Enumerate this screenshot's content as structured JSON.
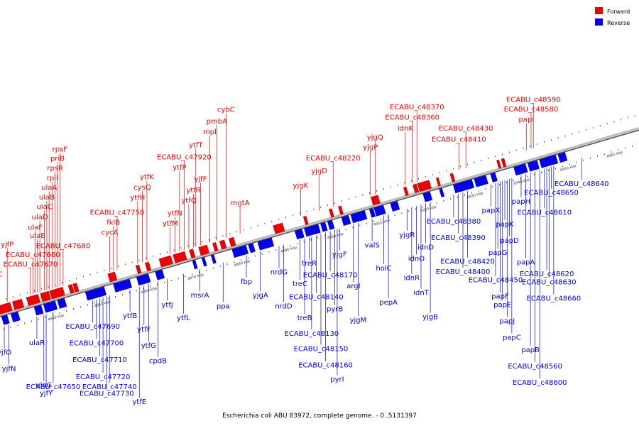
{
  "caption": "Escherichia coli ABU 83972, complete genome. - 0..5131397",
  "legend": [
    {
      "label": "Forward",
      "color": "#ee0000"
    },
    {
      "label": "Reverse",
      "color": "#0000ee"
    }
  ],
  "colors": {
    "forward": "#ee0000",
    "reverse": "#0000ee",
    "backbone": "#999999",
    "leader": "#000000"
  },
  "axis": {
    "start_kbp": 4830,
    "end_kbp": 4968,
    "unit": "kbp",
    "ticks": [
      4840,
      4850,
      4860,
      4870,
      4880,
      4890,
      4900,
      4910,
      4920,
      4930,
      4940,
      4950,
      4960
    ]
  },
  "forward_genes": [
    {
      "name": "ECABU_c47670",
      "pos": 4838.0
    },
    {
      "name": "ECABU_c47660",
      "pos": 4838.5
    },
    {
      "name": "yjfC",
      "pos": 4830.5
    },
    {
      "name": "yjfP",
      "pos": 4833.0
    },
    {
      "name": "ulaF",
      "pos": 4839.0
    },
    {
      "name": "ulaE",
      "pos": 4839.5
    },
    {
      "name": "ulaD",
      "pos": 4840.0
    },
    {
      "name": "ulaC",
      "pos": 4841.0
    },
    {
      "name": "ulaB",
      "pos": 4841.5
    },
    {
      "name": "ulaA",
      "pos": 4842.0
    },
    {
      "name": "rplI",
      "pos": 4842.7
    },
    {
      "name": "rpsR",
      "pos": 4843.3
    },
    {
      "name": "priB",
      "pos": 4843.8
    },
    {
      "name": "rpsF",
      "pos": 4844.3
    },
    {
      "name": "ECABU_c47680",
      "pos": 4845.0
    },
    {
      "name": "cycA",
      "pos": 4855.0
    },
    {
      "name": "fklB",
      "pos": 4855.8
    },
    {
      "name": "ECABU_c47750",
      "pos": 4856.6
    },
    {
      "name": "ytfH",
      "pos": 4861.0
    },
    {
      "name": "cysQ",
      "pos": 4862.0
    },
    {
      "name": "ytfK",
      "pos": 4863.0
    },
    {
      "name": "ytfM",
      "pos": 4868.0
    },
    {
      "name": "ytfN",
      "pos": 4869.0
    },
    {
      "name": "ytfP",
      "pos": 4870.0
    },
    {
      "name": "ECABU_c47920",
      "pos": 4871.0
    },
    {
      "name": "ytfQ",
      "pos": 4872.0
    },
    {
      "name": "ytfR",
      "pos": 4873.0
    },
    {
      "name": "ytfT",
      "pos": 4873.5
    },
    {
      "name": "yjfF",
      "pos": 4874.5
    },
    {
      "name": "mpl",
      "pos": 4876.5
    },
    {
      "name": "pmbA",
      "pos": 4878.0
    },
    {
      "name": "cybC",
      "pos": 4880.0
    },
    {
      "name": "mgtA",
      "pos": 4883.0
    },
    {
      "name": "yjgK",
      "pos": 4896.0
    },
    {
      "name": "yjgD",
      "pos": 4900.0
    },
    {
      "name": "ECABU_c48220",
      "pos": 4903.0
    },
    {
      "name": "yjgP",
      "pos": 4911.0
    },
    {
      "name": "yjgQ",
      "pos": 4912.0
    },
    {
      "name": "idnK",
      "pos": 4918.5
    },
    {
      "name": "ECABU_c48360",
      "pos": 4920.0
    },
    {
      "name": "ECABU_c48370",
      "pos": 4921.0
    },
    {
      "name": "ECABU_c48410",
      "pos": 4930.0
    },
    {
      "name": "ECABU_c48430",
      "pos": 4931.5
    },
    {
      "name": "papI",
      "pos": 4944.5
    },
    {
      "name": "ECABU_c48580",
      "pos": 4945.5
    },
    {
      "name": "ECABU_c48590",
      "pos": 4946.0
    }
  ],
  "reverse_genes": [
    {
      "name": "yjfO",
      "pos": 4831.0
    },
    {
      "name": "yjfN",
      "pos": 4832.0
    },
    {
      "name": "ulaR",
      "pos": 4838.0
    },
    {
      "name": "ulaG",
      "pos": 4839.5
    },
    {
      "name": "yjfY",
      "pos": 4840.0
    },
    {
      "name": "ECABU_c47650",
      "pos": 4841.5
    },
    {
      "name": "ECABU_c47690",
      "pos": 4850.0
    },
    {
      "name": "ECABU_c47700",
      "pos": 4850.8
    },
    {
      "name": "ECABU_c47710",
      "pos": 4851.5
    },
    {
      "name": "ECABU_c47720",
      "pos": 4852.2
    },
    {
      "name": "ECABU_c47730",
      "pos": 4853.0
    },
    {
      "name": "ECABU_c47740",
      "pos": 4853.6
    },
    {
      "name": "ytfB",
      "pos": 4858.0
    },
    {
      "name": "ytfE",
      "pos": 4860.0
    },
    {
      "name": "ytfF",
      "pos": 4861.0
    },
    {
      "name": "ytfG",
      "pos": 4862.0
    },
    {
      "name": "cpdB",
      "pos": 4864.0
    },
    {
      "name": "ytfJ",
      "pos": 4866.0
    },
    {
      "name": "ytfL",
      "pos": 4869.5
    },
    {
      "name": "msrA",
      "pos": 4873.0
    },
    {
      "name": "ppa",
      "pos": 4878.0
    },
    {
      "name": "fbp",
      "pos": 4883.0
    },
    {
      "name": "yjgA",
      "pos": 4886.0
    },
    {
      "name": "nrdG",
      "pos": 4890.0
    },
    {
      "name": "nrdD",
      "pos": 4891.0
    },
    {
      "name": "treC",
      "pos": 4894.5
    },
    {
      "name": "treB",
      "pos": 4895.5
    },
    {
      "name": "treR",
      "pos": 4896.5
    },
    {
      "name": "ECABU_c48130",
      "pos": 4897.0
    },
    {
      "name": "ECABU_c48140",
      "pos": 4898.0
    },
    {
      "name": "ECABU_c48150",
      "pos": 4899.0
    },
    {
      "name": "ECABU_c48160",
      "pos": 4900.0
    },
    {
      "name": "ECABU_c48170",
      "pos": 4901.0
    },
    {
      "name": "pyrB",
      "pos": 4902.0
    },
    {
      "name": "pyrI",
      "pos": 4902.5
    },
    {
      "name": "yjgF",
      "pos": 4903.0
    },
    {
      "name": "argI",
      "pos": 4906.0
    },
    {
      "name": "yjgM",
      "pos": 4907.0
    },
    {
      "name": "valS",
      "pos": 4910.0
    },
    {
      "name": "holC",
      "pos": 4912.5
    },
    {
      "name": "pepA",
      "pos": 4913.5
    },
    {
      "name": "yjgR",
      "pos": 4917.5
    },
    {
      "name": "idnR",
      "pos": 4918.5
    },
    {
      "name": "idnO",
      "pos": 4919.5
    },
    {
      "name": "idnT",
      "pos": 4920.5
    },
    {
      "name": "idnD",
      "pos": 4921.5
    },
    {
      "name": "yjgB",
      "pos": 4922.5
    },
    {
      "name": "ECABU_c48380",
      "pos": 4927.5
    },
    {
      "name": "ECABU_c48390",
      "pos": 4928.5
    },
    {
      "name": "ECABU_c48400",
      "pos": 4929.5
    },
    {
      "name": "ECABU_c48420",
      "pos": 4930.5
    },
    {
      "name": "papX",
      "pos": 4935.5
    },
    {
      "name": "ECABU_c48450",
      "pos": 4936.5
    },
    {
      "name": "papG",
      "pos": 4937.0
    },
    {
      "name": "papF",
      "pos": 4937.5
    },
    {
      "name": "papE",
      "pos": 4938.0
    },
    {
      "name": "papK",
      "pos": 4938.5
    },
    {
      "name": "papJ",
      "pos": 4939.0
    },
    {
      "name": "papD",
      "pos": 4939.5
    },
    {
      "name": "papC",
      "pos": 4940.0
    },
    {
      "name": "papH",
      "pos": 4942.0
    },
    {
      "name": "papA",
      "pos": 4943.0
    },
    {
      "name": "papB",
      "pos": 4944.0
    },
    {
      "name": "ECABU_c48560",
      "pos": 4945.0
    },
    {
      "name": "ECABU_c48600",
      "pos": 4946.0
    },
    {
      "name": "ECABU_c48610",
      "pos": 4947.0
    },
    {
      "name": "ECABU_c48620",
      "pos": 4947.5
    },
    {
      "name": "ECABU_c48630",
      "pos": 4948.0
    },
    {
      "name": "ECABU_c48640",
      "pos": 4955.0
    },
    {
      "name": "ECABU_c48650",
      "pos": 4948.5
    },
    {
      "name": "ECABU_c48660",
      "pos": 4949.0
    }
  ],
  "forward_blocks": [
    [
      4830.0,
      4833.5
    ],
    [
      4834.0,
      4836.0
    ],
    [
      4837.0,
      4839.5
    ],
    [
      4840.0,
      4841.8
    ],
    [
      4842.0,
      4844.8
    ],
    [
      4846.0,
      4846.8
    ],
    [
      4847.0,
      4847.8
    ],
    [
      4854.5,
      4856.0
    ],
    [
      4860.5,
      4861.2
    ],
    [
      4862.5,
      4863.3
    ],
    [
      4865.5,
      4868.0
    ],
    [
      4868.5,
      4871.0
    ],
    [
      4872.0,
      4872.8
    ],
    [
      4874.0,
      4875.8
    ],
    [
      4877.0,
      4877.7
    ],
    [
      4878.5,
      4879.5
    ],
    [
      4880.5,
      4881.5
    ],
    [
      4890.0,
      4892.0
    ],
    [
      4896.5,
      4897.1
    ],
    [
      4902.0,
      4902.6
    ],
    [
      4904.0,
      4904.6
    ],
    [
      4911.0,
      4912.5
    ],
    [
      4918.0,
      4918.6
    ],
    [
      4920.0,
      4920.8
    ],
    [
      4921.0,
      4923.5
    ],
    [
      4925.0,
      4925.5
    ],
    [
      4928.0,
      4928.6
    ],
    [
      4938.0,
      4938.5
    ],
    [
      4939.0,
      4939.6
    ]
  ],
  "reverse_blocks": [
    [
      4831.0,
      4832.2
    ],
    [
      4833.0,
      4834.5
    ],
    [
      4838.0,
      4839.5
    ],
    [
      4840.0,
      4842.5
    ],
    [
      4843.0,
      4844.5
    ],
    [
      4849.0,
      4853.0
    ],
    [
      4855.0,
      4858.5
    ],
    [
      4860.0,
      4862.5
    ],
    [
      4864.0,
      4865.5
    ],
    [
      4872.0,
      4872.6
    ],
    [
      4874.0,
      4874.6
    ],
    [
      4876.0,
      4876.6
    ],
    [
      4880.5,
      4883.5
    ],
    [
      4884.0,
      4885.0
    ],
    [
      4886.0,
      4889.0
    ],
    [
      4894.0,
      4895.5
    ],
    [
      4896.0,
      4899.0
    ],
    [
      4899.5,
      4900.5
    ],
    [
      4901.0,
      4902.0
    ],
    [
      4904.0,
      4905.5
    ],
    [
      4906.0,
      4909.0
    ],
    [
      4910.0,
      4910.8
    ],
    [
      4911.0,
      4913.0
    ],
    [
      4914.5,
      4916.0
    ],
    [
      4921.5,
      4923.0
    ],
    [
      4925.0,
      4925.6
    ],
    [
      4928.0,
      4932.0
    ],
    [
      4932.5,
      4935.0
    ],
    [
      4936.0,
      4937.0
    ],
    [
      4941.0,
      4943.5
    ],
    [
      4944.0,
      4946.0
    ],
    [
      4946.5,
      4950.0
    ],
    [
      4950.5,
      4952.0
    ]
  ]
}
